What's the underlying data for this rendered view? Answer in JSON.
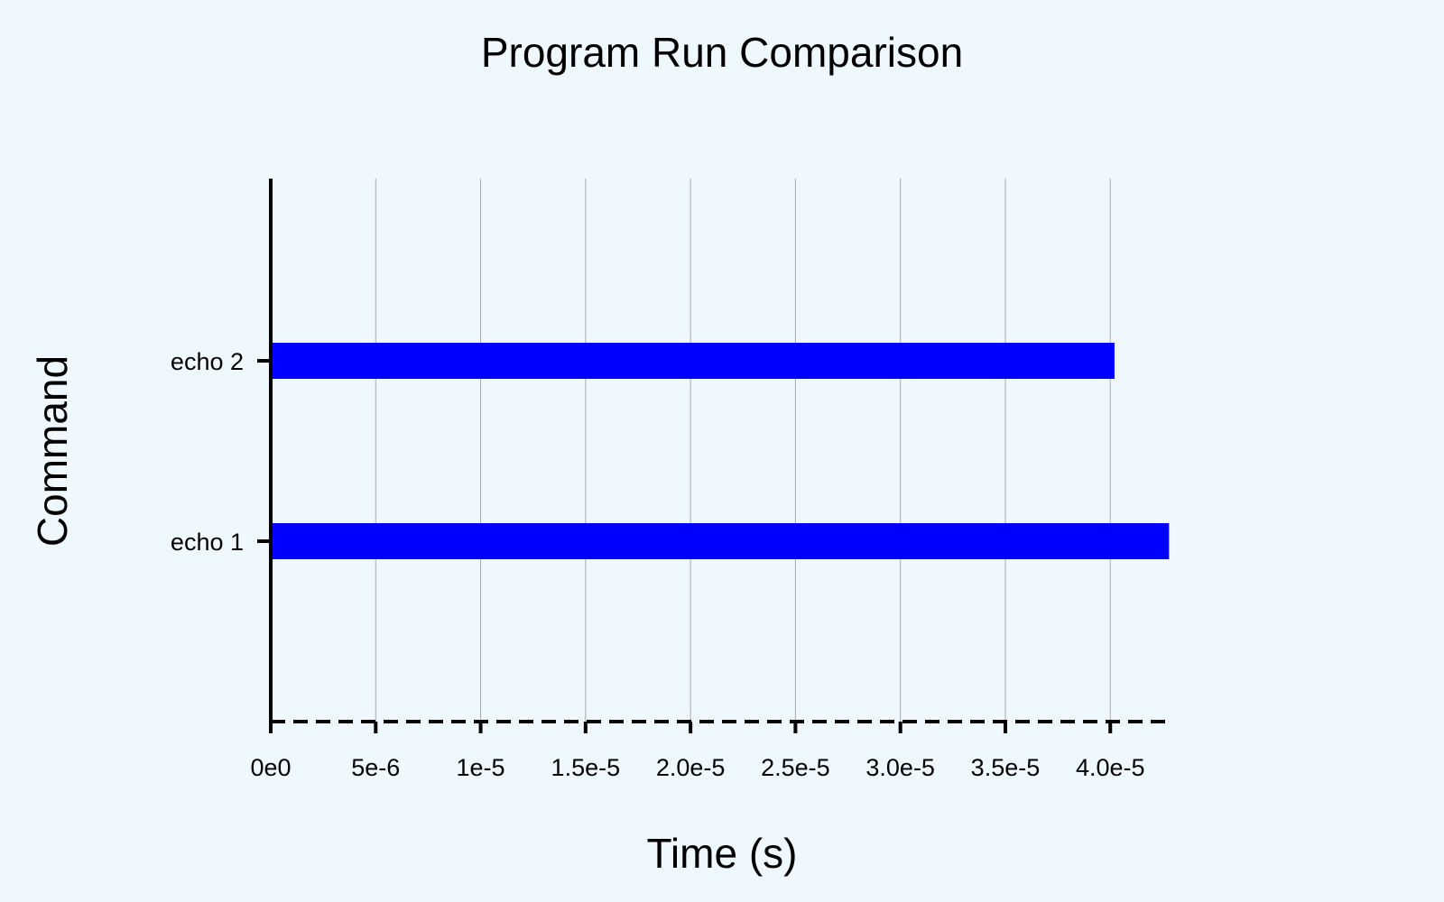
{
  "chart_data": {
    "type": "bar",
    "orientation": "horizontal",
    "title": "Program Run Comparison",
    "xlabel": "Time (s)",
    "ylabel": "Command",
    "categories": [
      "echo 1",
      "echo 2"
    ],
    "series": [
      {
        "values": [
          4.28e-05,
          4.02e-05
        ]
      }
    ],
    "xlim": [
      0,
      4.3e-05
    ],
    "xticks": [
      0,
      5e-06,
      1e-05,
      1.5e-05,
      2e-05,
      2.5e-05,
      3e-05,
      3.5e-05,
      4e-05
    ],
    "xtick_labels": [
      "0e0",
      "5e-6",
      "1e-5",
      "1.5e-5",
      "2.0e-5",
      "2.5e-5",
      "3.0e-5",
      "3.5e-5",
      "4.0e-5"
    ],
    "grid": "vertical",
    "legend": "none",
    "colors": {
      "background": "#f0f8ff",
      "bar": "#0000ff",
      "gridline": "#a9a9a9",
      "axis": "#000000"
    }
  }
}
